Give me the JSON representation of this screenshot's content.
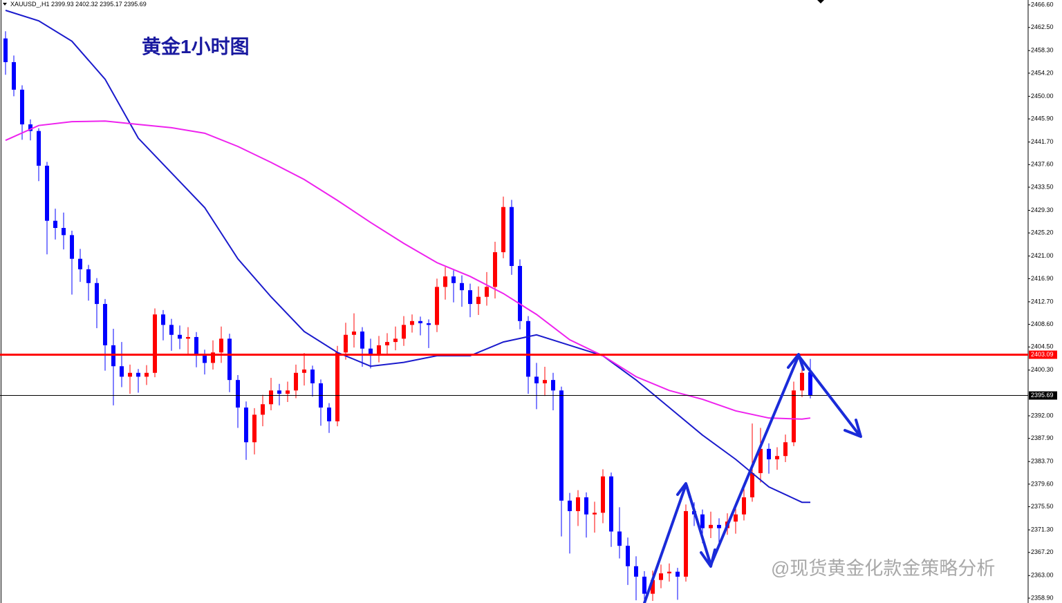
{
  "chart_data": {
    "type": "candlestick",
    "title": "黄金1小时图",
    "symbol": "XAUUSD_,H1",
    "watermark": "@现货黄金化款金策略分析",
    "up_color": "#ff0000",
    "down_color": "#0000ff",
    "ylim": [
      2358.02,
      2467.48
    ],
    "yticks": [
      {
        "value": 2466.6,
        "label": "2466.60"
      },
      {
        "value": 2462.5,
        "label": "2462.50"
      },
      {
        "value": 2458.3,
        "label": "2458.30"
      },
      {
        "value": 2454.2,
        "label": "2454.20"
      },
      {
        "value": 2450.0,
        "label": "2450.00"
      },
      {
        "value": 2445.9,
        "label": "2445.90"
      },
      {
        "value": 2441.7,
        "label": "2441.70"
      },
      {
        "value": 2437.6,
        "label": "2437.60"
      },
      {
        "value": 2433.5,
        "label": "2433.50"
      },
      {
        "value": 2429.3,
        "label": "2429.30"
      },
      {
        "value": 2425.2,
        "label": "2425.20"
      },
      {
        "value": 2421.0,
        "label": "2421.00"
      },
      {
        "value": 2416.9,
        "label": "2416.90"
      },
      {
        "value": 2412.7,
        "label": "2412.70"
      },
      {
        "value": 2408.6,
        "label": "2408.60"
      },
      {
        "value": 2404.5,
        "label": "2404.50"
      },
      {
        "value": 2400.3,
        "label": "2400.30"
      },
      {
        "value": 2392.0,
        "label": "2392.00"
      },
      {
        "value": 2387.9,
        "label": "2387.90"
      },
      {
        "value": 2383.7,
        "label": "2383.70"
      },
      {
        "value": 2379.6,
        "label": "2379.60"
      },
      {
        "value": 2375.5,
        "label": "2375.50"
      },
      {
        "value": 2371.3,
        "label": "2371.30"
      },
      {
        "value": 2367.2,
        "label": "2367.20"
      },
      {
        "value": 2363.0,
        "label": "2363.00"
      },
      {
        "value": 2358.9,
        "label": "2358.90"
      }
    ],
    "hlines": [
      {
        "value": 2403.09,
        "color": "#ff0000",
        "width": 3
      },
      {
        "value": 2395.69,
        "color": "#000000",
        "width": 1
      }
    ],
    "ohlc": [
      [
        2460.5,
        2461.8,
        2453.9,
        2456.2
      ],
      [
        2456.2,
        2457.4,
        2450.0,
        2451.2
      ],
      [
        2451.2,
        2452.0,
        2442.1,
        2444.9
      ],
      [
        2444.9,
        2445.8,
        2442.0,
        2443.7
      ],
      [
        2443.7,
        2444.2,
        2434.6,
        2437.4
      ],
      [
        2437.4,
        2438.1,
        2421.3,
        2427.4
      ],
      [
        2427.4,
        2429.6,
        2424.0,
        2426.1
      ],
      [
        2426.1,
        2428.9,
        2422.2,
        2424.8
      ],
      [
        2424.8,
        2425.6,
        2414.0,
        2420.5
      ],
      [
        2420.5,
        2422.3,
        2416.3,
        2418.6
      ],
      [
        2418.6,
        2419.4,
        2412.9,
        2416.1
      ],
      [
        2416.1,
        2417.0,
        2407.9,
        2412.3
      ],
      [
        2412.3,
        2413.2,
        2400.2,
        2404.8
      ],
      [
        2404.8,
        2407.8,
        2393.9,
        2401.0
      ],
      [
        2401.0,
        2405.4,
        2397.2,
        2399.1
      ],
      [
        2399.1,
        2401.3,
        2396.0,
        2399.8
      ],
      [
        2399.8,
        2400.5,
        2396.2,
        2399.1
      ],
      [
        2399.1,
        2401.2,
        2397.6,
        2399.8
      ],
      [
        2399.8,
        2411.5,
        2399.0,
        2410.4
      ],
      [
        2410.4,
        2411.2,
        2405.7,
        2408.5
      ],
      [
        2408.5,
        2409.6,
        2403.8,
        2406.7
      ],
      [
        2406.7,
        2408.4,
        2404.1,
        2406.0
      ],
      [
        2406.0,
        2408.1,
        2403.0,
        2406.3
      ],
      [
        2406.3,
        2407.2,
        2400.8,
        2402.9
      ],
      [
        2402.9,
        2404.0,
        2399.5,
        2401.6
      ],
      [
        2401.6,
        2405.7,
        2400.4,
        2403.5
      ],
      [
        2403.5,
        2408.2,
        2401.6,
        2406.0
      ],
      [
        2406.0,
        2406.9,
        2396.3,
        2398.5
      ],
      [
        2398.5,
        2399.4,
        2389.8,
        2393.5
      ],
      [
        2393.5,
        2394.6,
        2384.0,
        2387.2
      ],
      [
        2387.2,
        2393.4,
        2385.0,
        2392.2
      ],
      [
        2392.2,
        2395.8,
        2390.1,
        2394.1
      ],
      [
        2394.1,
        2398.9,
        2393.0,
        2396.6
      ],
      [
        2396.6,
        2397.8,
        2393.9,
        2396.0
      ],
      [
        2396.0,
        2398.2,
        2394.5,
        2396.6
      ],
      [
        2396.6,
        2401.3,
        2395.2,
        2399.8
      ],
      [
        2399.8,
        2403.4,
        2397.5,
        2400.4
      ],
      [
        2400.4,
        2401.1,
        2395.5,
        2397.9
      ],
      [
        2397.9,
        2398.6,
        2390.2,
        2393.5
      ],
      [
        2393.5,
        2394.3,
        2388.9,
        2391.0
      ],
      [
        2391.0,
        2404.7,
        2390.1,
        2403.5
      ],
      [
        2403.5,
        2408.9,
        2402.2,
        2406.7
      ],
      [
        2406.7,
        2410.6,
        2404.4,
        2407.3
      ],
      [
        2407.3,
        2408.1,
        2400.9,
        2404.2
      ],
      [
        2404.2,
        2406.0,
        2400.6,
        2402.9
      ],
      [
        2402.9,
        2406.5,
        2401.7,
        2404.8
      ],
      [
        2404.8,
        2407.0,
        2403.2,
        2405.4
      ],
      [
        2405.4,
        2408.2,
        2403.9,
        2406.0
      ],
      [
        2406.0,
        2410.1,
        2404.7,
        2408.5
      ],
      [
        2408.5,
        2410.4,
        2407.1,
        2409.2
      ],
      [
        2409.2,
        2410.0,
        2406.6,
        2408.8
      ],
      [
        2408.8,
        2409.5,
        2404.3,
        2408.5
      ],
      [
        2408.5,
        2416.9,
        2407.2,
        2415.4
      ],
      [
        2415.4,
        2419.0,
        2413.1,
        2417.3
      ],
      [
        2417.3,
        2418.4,
        2412.6,
        2416.1
      ],
      [
        2416.1,
        2417.5,
        2411.8,
        2414.8
      ],
      [
        2414.8,
        2416.0,
        2409.9,
        2412.3
      ],
      [
        2412.3,
        2415.5,
        2410.3,
        2413.6
      ],
      [
        2413.6,
        2418.1,
        2412.0,
        2415.4
      ],
      [
        2415.4,
        2423.6,
        2413.3,
        2421.7
      ],
      [
        2421.7,
        2431.8,
        2420.6,
        2429.9
      ],
      [
        2429.9,
        2431.2,
        2417.6,
        2419.2
      ],
      [
        2419.2,
        2420.4,
        2407.7,
        2409.2
      ],
      [
        2409.2,
        2410.1,
        2396.0,
        2399.1
      ],
      [
        2399.1,
        2401.6,
        2393.2,
        2397.9
      ],
      [
        2397.9,
        2400.9,
        2395.6,
        2398.5
      ],
      [
        2398.5,
        2399.8,
        2393.0,
        2396.6
      ],
      [
        2396.6,
        2397.3,
        2370.1,
        2376.6
      ],
      [
        2376.6,
        2378.0,
        2367.0,
        2374.7
      ],
      [
        2374.7,
        2378.5,
        2372.0,
        2377.2
      ],
      [
        2377.2,
        2378.1,
        2369.9,
        2374.1
      ],
      [
        2374.1,
        2376.4,
        2370.8,
        2374.4
      ],
      [
        2374.4,
        2382.3,
        2372.5,
        2381.0
      ],
      [
        2381.0,
        2381.7,
        2368.2,
        2371.0
      ],
      [
        2371.0,
        2375.4,
        2366.1,
        2368.4
      ],
      [
        2368.4,
        2369.9,
        2361.3,
        2364.7
      ],
      [
        2364.7,
        2366.5,
        2358.5,
        2362.8
      ],
      [
        2362.8,
        2363.8,
        2358.2,
        2359.7
      ],
      [
        2359.7,
        2363.9,
        2358.4,
        2362.2
      ],
      [
        2362.2,
        2365.0,
        2360.7,
        2363.4
      ],
      [
        2363.4,
        2365.2,
        2361.9,
        2363.7
      ],
      [
        2363.7,
        2364.4,
        2358.6,
        2362.8
      ],
      [
        2362.8,
        2375.9,
        2361.9,
        2374.7
      ],
      [
        2374.7,
        2376.3,
        2372.0,
        2374.1
      ],
      [
        2374.1,
        2375.0,
        2368.9,
        2371.6
      ],
      [
        2371.6,
        2374.6,
        2369.8,
        2372.2
      ],
      [
        2372.2,
        2373.4,
        2368.8,
        2371.6
      ],
      [
        2371.6,
        2374.3,
        2370.4,
        2372.8
      ],
      [
        2372.8,
        2375.5,
        2370.6,
        2374.1
      ],
      [
        2374.1,
        2379.2,
        2373.0,
        2377.2
      ],
      [
        2377.2,
        2390.6,
        2376.4,
        2381.6
      ],
      [
        2381.6,
        2389.8,
        2379.9,
        2386.0
      ],
      [
        2386.0,
        2387.0,
        2381.5,
        2384.1
      ],
      [
        2384.1,
        2386.3,
        2382.2,
        2384.7
      ],
      [
        2384.7,
        2388.6,
        2383.6,
        2387.2
      ],
      [
        2387.2,
        2398.2,
        2386.5,
        2396.6
      ],
      [
        2396.6,
        2401.5,
        2395.4,
        2399.8
      ],
      [
        2399.93,
        2402.32,
        2395.17,
        2395.69
      ]
    ],
    "series": [
      {
        "color": "#1a1acc",
        "x": [
          0,
          4,
          8,
          12,
          16,
          20,
          24,
          28,
          32,
          36,
          40,
          44,
          48,
          52,
          56,
          60,
          64,
          68,
          72,
          76,
          80,
          84,
          88,
          92,
          96,
          97
        ],
        "values": [
          2465.6,
          2463.7,
          2460.0,
          2453.1,
          2442.4,
          2436.1,
          2429.8,
          2420.5,
          2413.6,
          2407.3,
          2403.5,
          2401.0,
          2401.7,
          2402.9,
          2402.9,
          2405.4,
          2406.7,
          2404.8,
          2402.9,
          2398.5,
          2393.5,
          2388.5,
          2384.1,
          2379.1,
          2376.3,
          2376.3
        ]
      },
      {
        "color": "#ee22ee",
        "x": [
          0,
          4,
          8,
          12,
          16,
          20,
          24,
          28,
          32,
          36,
          40,
          44,
          48,
          52,
          56,
          60,
          64,
          68,
          72,
          76,
          80,
          84,
          88,
          92,
          96,
          97
        ],
        "values": [
          2442.0,
          2444.7,
          2445.4,
          2445.5,
          2444.9,
          2444.3,
          2443.3,
          2440.9,
          2438.0,
          2434.9,
          2431.1,
          2427.1,
          2423.3,
          2419.8,
          2417.3,
          2414.2,
          2410.4,
          2405.8,
          2402.9,
          2399.1,
          2396.6,
          2395.0,
          2392.9,
          2391.6,
          2391.4,
          2391.6
        ]
      }
    ]
  }
}
